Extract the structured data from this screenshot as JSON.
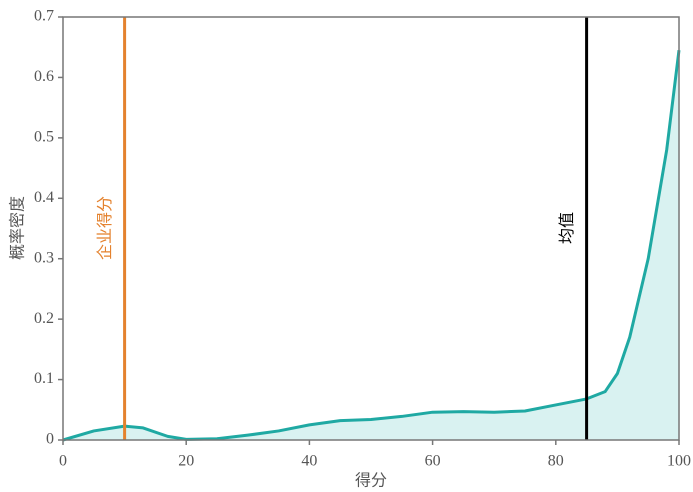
{
  "chart_data": {
    "type": "area",
    "xlabel": "得分",
    "ylabel": "概率密度",
    "x": [
      0,
      5,
      10,
      13,
      17,
      20,
      25,
      30,
      35,
      40,
      45,
      50,
      55,
      60,
      65,
      70,
      75,
      80,
      85,
      88,
      90,
      92,
      95,
      98,
      100
    ],
    "values": [
      0,
      0.015,
      0.023,
      0.02,
      0.006,
      0.001,
      0.002,
      0.008,
      0.015,
      0.025,
      0.032,
      0.034,
      0.039,
      0.046,
      0.047,
      0.046,
      0.048,
      0.058,
      0.068,
      0.08,
      0.11,
      0.17,
      0.3,
      0.48,
      0.645
    ],
    "color": "#1fa9a3",
    "fill_color": "#d9f2f1",
    "reference_lines": [
      {
        "label": "企业得分",
        "value": 10,
        "color": "#e4822e"
      },
      {
        "label": "均值",
        "value": 85,
        "color": "#000000"
      }
    ],
    "xlim": [
      0,
      100
    ],
    "xticks": [
      0,
      20,
      40,
      60,
      80,
      100
    ],
    "ylim": [
      0,
      0.7
    ],
    "yticks": [
      0,
      0.1,
      0.2,
      0.3,
      0.4,
      0.5,
      0.6,
      0.7
    ]
  }
}
